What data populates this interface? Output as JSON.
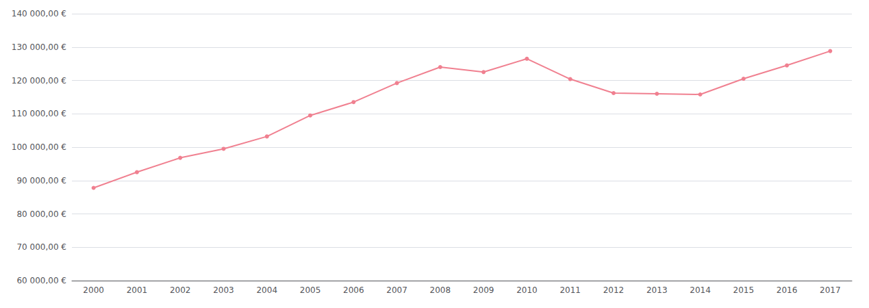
{
  "chart_data": {
    "type": "line",
    "categories": [
      "2000",
      "2001",
      "2002",
      "2003",
      "2004",
      "2005",
      "2006",
      "2007",
      "2008",
      "2009",
      "2010",
      "2011",
      "2012",
      "2013",
      "2014",
      "2015",
      "2016",
      "2017"
    ],
    "values": [
      87800,
      92500,
      96800,
      99500,
      103200,
      109500,
      113500,
      119200,
      124000,
      122500,
      126500,
      120400,
      116200,
      116000,
      115800,
      120500,
      124500,
      128800
    ],
    "color": "#f08090",
    "marker": "circle",
    "ylim": [
      60000,
      140000
    ],
    "yticks": [
      {
        "value": 60000,
        "label": "60 000,00 €"
      },
      {
        "value": 70000,
        "label": "70 000,00 €"
      },
      {
        "value": 80000,
        "label": "80 000,00 €"
      },
      {
        "value": 90000,
        "label": "90 000,00 €"
      },
      {
        "value": 100000,
        "label": "100 000,00 €"
      },
      {
        "value": 110000,
        "label": "110 000,00 €"
      },
      {
        "value": 120000,
        "label": "120 000,00 €"
      },
      {
        "value": 130000,
        "label": "130 000,00 €"
      },
      {
        "value": 140000,
        "label": "140 000,00 €"
      }
    ],
    "grid": true
  }
}
